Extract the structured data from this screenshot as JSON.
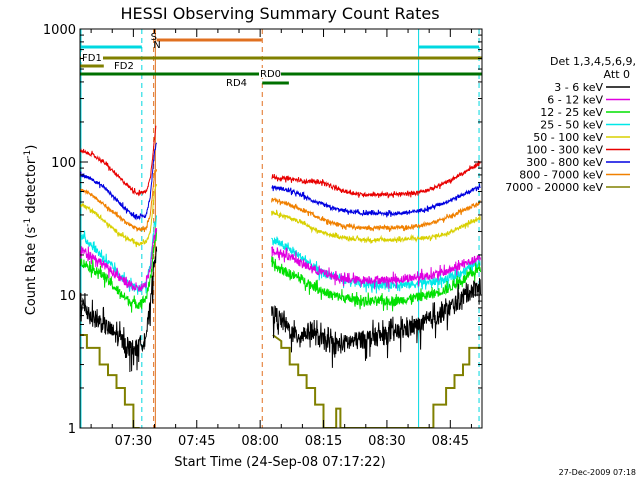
{
  "chart_data": {
    "type": "line",
    "title": "HESSI Observing Summary Count Rates",
    "xlabel": "Start Time (24-Sep-08 07:17:22)",
    "ylabel_main": "Count Rate (s",
    "ylabel_sup1": "-1",
    "ylabel_mid": " detector",
    "ylabel_sup2": "-1",
    "ylabel_end": ")",
    "y_scale": "log",
    "xlim": [
      437.37,
      532.5
    ],
    "ylim": [
      1,
      1000
    ],
    "x_ticks": [
      {
        "t": 450,
        "label": "07:30"
      },
      {
        "t": 465,
        "label": "07:45"
      },
      {
        "t": 480,
        "label": "08:00"
      },
      {
        "t": 495,
        "label": "08:15"
      },
      {
        "t": 510,
        "label": "08:30"
      },
      {
        "t": 525,
        "label": "08:45"
      }
    ],
    "y_ticks": [
      {
        "v": 1,
        "label": "1"
      },
      {
        "v": 10,
        "label": "10"
      },
      {
        "v": 100,
        "label": "100"
      },
      {
        "v": 1000,
        "label": "1000"
      }
    ],
    "legend_header_1": "Det 1,3,4,5,6,9,",
    "legend_header_2": "Att 0",
    "legend_position": "right, outside plot",
    "footer_date": "27-Dec-2009 07:18",
    "colors": {
      "eclipse": "#00d8e0",
      "saa": "#e07020",
      "flare": "#d05000",
      "fd": "#808000",
      "rd": "#007000"
    },
    "vertical_markers": [
      {
        "t": 437.6,
        "style": "solid",
        "kind": "eclipse"
      },
      {
        "t": 452.0,
        "style": "dashed",
        "kind": "eclipse"
      },
      {
        "t": 454.8,
        "style": "dashed",
        "kind": "saa"
      },
      {
        "t": 455.2,
        "style": "solid",
        "kind": "saa"
      },
      {
        "t": 480.5,
        "style": "dashed",
        "kind": "saa"
      },
      {
        "t": 517.5,
        "style": "solid",
        "kind": "eclipse"
      },
      {
        "t": 531.8,
        "style": "dashed",
        "kind": "eclipse"
      }
    ],
    "flag_bars": [
      {
        "label": "",
        "t0": 437.37,
        "t1": 452.0,
        "y": 47,
        "kind": "eclipse"
      },
      {
        "label": "",
        "t0": 517.5,
        "t1": 531.8,
        "y": 47,
        "kind": "eclipse"
      },
      {
        "label": "",
        "t0": 455.5,
        "t1": 480.4,
        "y": 40,
        "kind": "saa"
      },
      {
        "label": "FD1",
        "t0": 437.37,
        "t1": 532.5,
        "y": 58,
        "kind": "fd"
      },
      {
        "label": "FD2",
        "t0": 437.37,
        "t1": 443.0,
        "y": 66,
        "kind": "fd"
      },
      {
        "label": "RD0",
        "t0": 437.37,
        "t1": 532.5,
        "y": 74,
        "kind": "rd"
      },
      {
        "label": "RD4",
        "t0": 480.5,
        "t1": 486.8,
        "y": 83,
        "kind": "rd"
      }
    ],
    "flag_text": [
      {
        "text": "S",
        "t": 454.8,
        "y": 40,
        "kind": "saa"
      },
      {
        "text": "N",
        "t": 455.4,
        "y": 48,
        "kind": "eclipse"
      }
    ],
    "series": [
      {
        "name": "3 - 6 keV",
        "color": "#000000",
        "noise": 0.16,
        "seg1": [
          [
            437.5,
            9
          ],
          [
            440,
            7
          ],
          [
            443,
            6
          ],
          [
            446,
            5
          ],
          [
            449,
            4
          ],
          [
            451,
            4
          ],
          [
            453,
            5
          ],
          [
            454,
            8
          ],
          [
            455,
            20
          ],
          [
            455.5,
            20
          ]
        ],
        "seg2": [
          [
            482.7,
            7.5
          ],
          [
            484,
            7
          ],
          [
            486,
            6
          ],
          [
            488,
            5
          ],
          [
            490,
            5
          ],
          [
            492,
            5.5
          ],
          [
            493,
            5
          ],
          [
            495,
            4.5
          ],
          [
            498,
            4.2
          ],
          [
            502,
            4.5
          ],
          [
            506,
            4.8
          ],
          [
            510,
            5
          ],
          [
            514,
            5.5
          ],
          [
            518,
            6
          ],
          [
            522,
            7
          ],
          [
            526,
            8.5
          ],
          [
            530,
            11
          ],
          [
            532.2,
            12
          ]
        ]
      },
      {
        "name": "6 - 12 keV",
        "color": "#e000e0",
        "noise": 0.07,
        "seg1": [
          [
            437.5,
            22
          ],
          [
            440,
            20
          ],
          [
            443,
            17
          ],
          [
            446,
            14
          ],
          [
            449,
            12
          ],
          [
            451,
            11
          ],
          [
            453,
            12
          ],
          [
            454,
            16
          ],
          [
            455,
            30
          ],
          [
            455.5,
            32
          ]
        ],
        "seg2": [
          [
            482.7,
            22
          ],
          [
            484,
            21
          ],
          [
            486,
            20
          ],
          [
            488,
            19
          ],
          [
            490,
            17
          ],
          [
            492,
            16
          ],
          [
            494,
            15
          ],
          [
            497,
            14
          ],
          [
            500,
            13
          ],
          [
            504,
            13
          ],
          [
            508,
            13
          ],
          [
            512,
            13
          ],
          [
            516,
            13.5
          ],
          [
            520,
            14
          ],
          [
            524,
            15
          ],
          [
            528,
            17
          ],
          [
            532.2,
            19
          ]
        ]
      },
      {
        "name": "12 - 25 keV",
        "color": "#00e000",
        "noise": 0.08,
        "seg1": [
          [
            437.5,
            18
          ],
          [
            440,
            16
          ],
          [
            443,
            14
          ],
          [
            446,
            11
          ],
          [
            449,
            9
          ],
          [
            451,
            8.5
          ],
          [
            453,
            9.5
          ],
          [
            454,
            13
          ],
          [
            455,
            25
          ],
          [
            455.5,
            28
          ]
        ],
        "seg2": [
          [
            482.7,
            17
          ],
          [
            484,
            16
          ],
          [
            486,
            15
          ],
          [
            488,
            14
          ],
          [
            490,
            13
          ],
          [
            492,
            12
          ],
          [
            494,
            11
          ],
          [
            497,
            10
          ],
          [
            500,
            9.5
          ],
          [
            504,
            9
          ],
          [
            508,
            9
          ],
          [
            512,
            9
          ],
          [
            516,
            9.5
          ],
          [
            520,
            10
          ],
          [
            524,
            11
          ],
          [
            528,
            13
          ],
          [
            532.2,
            16
          ]
        ]
      },
      {
        "name": "25 - 50 keV",
        "color": "#00e8e8",
        "noise": 0.07,
        "seg1": [
          [
            437.5,
            28
          ],
          [
            440,
            24
          ],
          [
            443,
            19
          ],
          [
            446,
            15
          ],
          [
            449,
            12
          ],
          [
            451,
            11
          ],
          [
            453,
            12
          ],
          [
            454,
            17
          ],
          [
            455,
            35
          ],
          [
            455.5,
            38
          ]
        ],
        "seg2": [
          [
            482.7,
            26
          ],
          [
            484,
            25
          ],
          [
            486,
            23
          ],
          [
            488,
            21
          ],
          [
            490,
            19
          ],
          [
            492,
            17
          ],
          [
            494,
            15
          ],
          [
            497,
            14
          ],
          [
            500,
            13
          ],
          [
            504,
            12
          ],
          [
            508,
            12
          ],
          [
            512,
            12
          ],
          [
            516,
            12
          ],
          [
            520,
            12.5
          ],
          [
            524,
            13
          ],
          [
            528,
            15
          ],
          [
            532.2,
            18
          ]
        ]
      },
      {
        "name": "50 - 100 keV",
        "color": "#d8d000",
        "noise": 0.03,
        "seg1": [
          [
            437.5,
            48
          ],
          [
            440,
            44
          ],
          [
            443,
            36
          ],
          [
            446,
            30
          ],
          [
            449,
            26
          ],
          [
            451,
            24
          ],
          [
            453,
            25
          ],
          [
            454,
            30
          ],
          [
            455,
            60
          ],
          [
            455.5,
            70
          ]
        ],
        "seg2": [
          [
            482.7,
            42
          ],
          [
            484,
            41
          ],
          [
            486,
            39
          ],
          [
            488,
            37
          ],
          [
            490,
            35
          ],
          [
            492,
            32
          ],
          [
            494,
            30
          ],
          [
            497,
            28
          ],
          [
            500,
            27
          ],
          [
            504,
            26
          ],
          [
            508,
            26
          ],
          [
            512,
            26
          ],
          [
            516,
            26.5
          ],
          [
            520,
            27
          ],
          [
            524,
            29
          ],
          [
            528,
            33
          ],
          [
            532.2,
            38
          ]
        ]
      },
      {
        "name": "100 - 300 keV",
        "color": "#e80000",
        "noise": 0.03,
        "seg1": [
          [
            437.5,
            120
          ],
          [
            440,
            115
          ],
          [
            443,
            100
          ],
          [
            446,
            80
          ],
          [
            449,
            65
          ],
          [
            451,
            58
          ],
          [
            453,
            60
          ],
          [
            454,
            75
          ],
          [
            455,
            150
          ],
          [
            455.4,
            200
          ]
        ],
        "seg2": [
          [
            482.7,
            77
          ],
          [
            484,
            76
          ],
          [
            486,
            75
          ],
          [
            488,
            74
          ],
          [
            490,
            72
          ],
          [
            493,
            71
          ],
          [
            495,
            70
          ],
          [
            497,
            65
          ],
          [
            500,
            60
          ],
          [
            504,
            57
          ],
          [
            508,
            57
          ],
          [
            512,
            57
          ],
          [
            516,
            58
          ],
          [
            520,
            62
          ],
          [
            524,
            70
          ],
          [
            528,
            82
          ],
          [
            532.2,
            100
          ]
        ]
      },
      {
        "name": "300 - 800 keV",
        "color": "#0000e0",
        "noise": 0.03,
        "seg1": [
          [
            437.5,
            80
          ],
          [
            440,
            75
          ],
          [
            443,
            65
          ],
          [
            446,
            52
          ],
          [
            449,
            42
          ],
          [
            451,
            38
          ],
          [
            453,
            40
          ],
          [
            454,
            55
          ],
          [
            455,
            120
          ],
          [
            455.5,
            140
          ]
        ],
        "seg2": [
          [
            482.7,
            65
          ],
          [
            484,
            64
          ],
          [
            486,
            62
          ],
          [
            488,
            59
          ],
          [
            490,
            56
          ],
          [
            492,
            52
          ],
          [
            494,
            49
          ],
          [
            497,
            45
          ],
          [
            500,
            43
          ],
          [
            504,
            41
          ],
          [
            508,
            41
          ],
          [
            512,
            41
          ],
          [
            516,
            42
          ],
          [
            520,
            45
          ],
          [
            524,
            50
          ],
          [
            528,
            57
          ],
          [
            532.2,
            66
          ]
        ]
      },
      {
        "name": "800 - 7000 keV",
        "color": "#f08000",
        "noise": 0.03,
        "seg1": [
          [
            437.5,
            62
          ],
          [
            440,
            57
          ],
          [
            443,
            48
          ],
          [
            446,
            40
          ],
          [
            449,
            34
          ],
          [
            451,
            31
          ],
          [
            453,
            32
          ],
          [
            454,
            40
          ],
          [
            455,
            80
          ],
          [
            455.5,
            90
          ]
        ],
        "seg2": [
          [
            482.7,
            52
          ],
          [
            484,
            51
          ],
          [
            486,
            49
          ],
          [
            488,
            46
          ],
          [
            490,
            43
          ],
          [
            492,
            41
          ],
          [
            494,
            38
          ],
          [
            497,
            35
          ],
          [
            500,
            33
          ],
          [
            504,
            32
          ],
          [
            508,
            32
          ],
          [
            512,
            32
          ],
          [
            516,
            32.5
          ],
          [
            520,
            34
          ],
          [
            524,
            38
          ],
          [
            528,
            43
          ],
          [
            532.2,
            50
          ]
        ]
      },
      {
        "name": "7000 - 20000 keV",
        "color": "#808000",
        "noise": 0,
        "seg1": [
          [
            437.5,
            5
          ],
          [
            439,
            5
          ],
          [
            439,
            4
          ],
          [
            442,
            4
          ],
          [
            442,
            3
          ],
          [
            444,
            3
          ],
          [
            444,
            2.5
          ],
          [
            446,
            2.5
          ],
          [
            446,
            2
          ],
          [
            448,
            2
          ],
          [
            448,
            1.5
          ],
          [
            450,
            1.5
          ],
          [
            450,
            1
          ],
          [
            451.5,
            1
          ]
        ],
        "seg2": [
          [
            483,
            5
          ],
          [
            485,
            4.5
          ],
          [
            485,
            4
          ],
          [
            487,
            4
          ],
          [
            487,
            3
          ],
          [
            489,
            3
          ],
          [
            489,
            2.5
          ],
          [
            491,
            2.5
          ],
          [
            491,
            2
          ],
          [
            493,
            2
          ],
          [
            493,
            1.5
          ],
          [
            495,
            1.5
          ],
          [
            495,
            1
          ],
          [
            498,
            1
          ],
          [
            498,
            1.4
          ],
          [
            499,
            1.4
          ],
          [
            499,
            1
          ],
          [
            521,
            1
          ],
          [
            521,
            1.5
          ],
          [
            524,
            1.5
          ],
          [
            524,
            2
          ],
          [
            526,
            2
          ],
          [
            526,
            2.5
          ],
          [
            528,
            2.5
          ],
          [
            528,
            3
          ],
          [
            529.5,
            3
          ],
          [
            529.5,
            4
          ],
          [
            532.2,
            4
          ]
        ]
      }
    ]
  }
}
